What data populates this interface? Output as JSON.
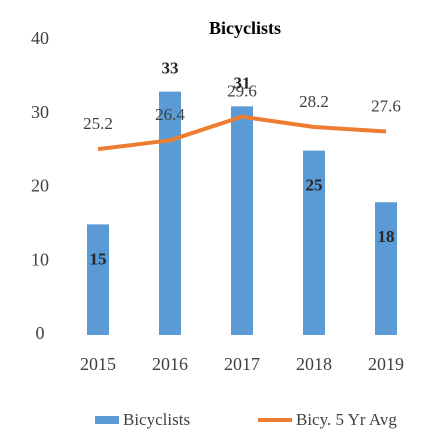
{
  "chart_data": {
    "type": "bar",
    "title": "Bicyclists",
    "categories": [
      "2015",
      "2016",
      "2017",
      "2018",
      "2019"
    ],
    "series": [
      {
        "name": "Bicyclists",
        "type": "bar",
        "color": "#5b9bd5",
        "values": [
          15,
          33,
          31,
          25,
          18
        ]
      },
      {
        "name": "Bicy. 5 Yr Avg",
        "type": "line",
        "color": "#ed7d31",
        "values": [
          25.2,
          26.4,
          29.6,
          28.2,
          27.6
        ]
      }
    ],
    "ylim": [
      0,
      40
    ],
    "yticks": [
      0,
      10,
      20,
      30,
      40
    ],
    "grid": false,
    "legend": "bottom"
  }
}
